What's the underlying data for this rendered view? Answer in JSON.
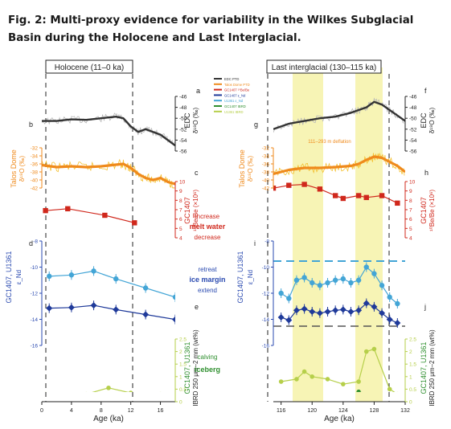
{
  "figure": {
    "caption": "Fig. 2: Multi-proxy evidence for variability in the Wilkes Subglacial Basin during the Holocene and Last Interglacial."
  },
  "panels": {
    "holocene_title": "Holocene (11–0 ka)",
    "lig_title": "Last interglacial (130–115 ka)",
    "letters": [
      "a",
      "b",
      "c",
      "d",
      "e",
      "f",
      "g",
      "h",
      "i",
      "j"
    ],
    "inflation_note": "111–293 m deflation"
  },
  "axis_labels": {
    "x": "Age (ka)",
    "edc": "EDC",
    "edc_sub": "δ¹⁸O (‰)",
    "talos": "Talos Dome",
    "talos_sub": "δ¹⁸O (‰)",
    "be": "GC1407",
    "be_sub": "¹⁰Be/Be (×10⁶)",
    "end": "ε_Nd",
    "end_core": "GC1407, U1361",
    "ibrd": "GC1407, U1361",
    "ibrd_sub": "IBRD 250 μm–2 mm (wt%)"
  },
  "annotations": {
    "melt_increase": "increase",
    "melt_label": "melt water",
    "melt_decrease": "decrease",
    "ice_retreat": "retreat",
    "ice_label": "ice margin",
    "ice_extend": "extend",
    "calving": "calving",
    "iceberg": "iceberg"
  },
  "legend": {
    "items": [
      "EDC PTD",
      "Talos Dome PTD",
      "GC1407 ¹⁰Be/Be",
      "GC1407 ε_Nd",
      "U1361 ε_Nd",
      "GC1407 IBRD",
      "U1361 IBRD"
    ]
  },
  "colors": {
    "edc": "#333333",
    "edc_raw": "#b8b8b8",
    "talos": "#ef8a1c",
    "talos_raw": "#f4c030",
    "be": "#d0281c",
    "end_u1361": "#43a5d6",
    "end_gc1407": "#1f3a9a",
    "ibrd_gc": "#2f8f2f",
    "ibrd_u": "#b6cf4a",
    "shade": "#f7f4b5",
    "red_annot": "#d0281c",
    "blue_annot": "#2a4ab0",
    "green_annot": "#2f8f2f"
  },
  "chart_data": [
    {
      "type": "line",
      "title": "Holocene (11–0 ka)",
      "xlabel": "Age (ka)",
      "xlim": [
        0,
        18
      ],
      "x_ticks": [
        0,
        4,
        8,
        12,
        16
      ],
      "series": [
        {
          "name": "EDC PTD",
          "ylim": [
            -56,
            -46
          ],
          "x": [
            0,
            2,
            4,
            6,
            8,
            10,
            11,
            12,
            13,
            14,
            15,
            16,
            17,
            18
          ],
          "y": [
            -50.5,
            -50.5,
            -50.2,
            -50.3,
            -50,
            -49.7,
            -50,
            -51.5,
            -52.5,
            -52,
            -52.5,
            -53,
            -54,
            -55
          ]
        },
        {
          "name": "Talos Dome PTD",
          "ylim": [
            -42,
            -32
          ],
          "x": [
            0,
            2,
            4,
            6,
            8,
            10,
            11,
            12,
            13,
            14,
            15,
            16,
            17,
            18
          ],
          "y": [
            -36.3,
            -36.8,
            -36.6,
            -36.8,
            -36.6,
            -36.2,
            -36,
            -37,
            -38.5,
            -39.5,
            -40,
            -39.5,
            -40.5,
            -41
          ]
        },
        {
          "name": "GC1407 ¹⁰Be/Be",
          "ylim": [
            4,
            10
          ],
          "x": [
            0.5,
            3.5,
            8.5,
            12.5
          ],
          "y": [
            6.9,
            7.1,
            6.4,
            5.6
          ]
        },
        {
          "name": "GC1407 ε_Nd",
          "ylim": [
            -16,
            -8
          ],
          "x": [
            1,
            4,
            7,
            10,
            14,
            18
          ],
          "y": [
            -10.7,
            -10.6,
            -10.3,
            -10.9,
            -11.6,
            -12.3
          ]
        },
        {
          "name": "GC1407 IBRD",
          "ylim": [
            0,
            2.5
          ],
          "x": [
            0,
            3,
            6,
            9,
            12,
            16
          ],
          "y": [
            0.05,
            0.05,
            0.05,
            0.05,
            0.05,
            0.05
          ]
        },
        {
          "name": "U1361 IBRD",
          "ylim": [
            0,
            2.5
          ],
          "x": [
            0.5,
            3,
            6,
            9,
            12,
            16
          ],
          "y": [
            0.3,
            0.25,
            0.3,
            0.55,
            0.35,
            0.3
          ]
        }
      ]
    },
    {
      "type": "line",
      "title": "Last interglacial (130–115 ka)",
      "xlabel": "Age (ka)",
      "xlim": [
        115,
        132
      ],
      "x_ticks": [
        116,
        120,
        124,
        128,
        132
      ],
      "series": [
        {
          "name": "EDC PTD",
          "ylim": [
            -56,
            -46
          ],
          "x": [
            115,
            117,
            119,
            121,
            123,
            125,
            126,
            127,
            128,
            129,
            130,
            131,
            132
          ],
          "y": [
            -52,
            -51,
            -50.5,
            -50,
            -49.7,
            -49,
            -48.5,
            -48,
            -47,
            -47.5,
            -48.5,
            -49.5,
            -50.5
          ]
        },
        {
          "name": "Talos Dome PTD",
          "ylim": [
            -42,
            -32
          ],
          "x": [
            115,
            117,
            119,
            121,
            123,
            125,
            126,
            127,
            128,
            129,
            130,
            131,
            132
          ],
          "y": [
            -38.5,
            -37.5,
            -37,
            -37,
            -36.8,
            -36.5,
            -36,
            -35,
            -34.2,
            -34.5,
            -35.5,
            -36.5,
            -38
          ]
        },
        {
          "name": "GC1407 ¹⁰Be/Be",
          "ylim": [
            4,
            10
          ],
          "x": [
            115,
            117,
            119,
            121,
            123,
            124,
            126,
            127,
            129,
            131
          ],
          "y": [
            9.3,
            9.6,
            9.7,
            9.2,
            8.5,
            8.2,
            8.5,
            8.3,
            8.5,
            7.7
          ]
        },
        {
          "name": "GC1407 ε_Nd",
          "ylim": [
            -16,
            -8
          ],
          "x": [
            116,
            117,
            118,
            119,
            120,
            121,
            122,
            123,
            124,
            125,
            126,
            127,
            128,
            129,
            130,
            131
          ],
          "y": [
            -12,
            -12.4,
            -11,
            -10.8,
            -11.2,
            -11.4,
            -11.2,
            -11,
            -10.9,
            -11.2,
            -11,
            -10,
            -10.5,
            -11.4,
            -12.3,
            -12.8
          ]
        },
        {
          "name": "GC1407 IBRD",
          "ylim": [
            0,
            2.5
          ],
          "x": [
            116,
            117,
            118,
            119,
            120,
            121,
            122,
            123,
            124,
            125,
            126,
            127,
            128,
            129,
            130,
            131
          ],
          "y": [
            0.1,
            0.2,
            0.25,
            0.3,
            0.25,
            0.2,
            0.3,
            0.2,
            0.25,
            0.3,
            0.4,
            0.3,
            0.2,
            0.25,
            0.1,
            0.05
          ]
        },
        {
          "name": "U1361 IBRD",
          "ylim": [
            0,
            2.5
          ],
          "x": [
            116,
            118,
            119,
            120,
            122,
            124,
            126,
            127,
            128,
            130,
            131
          ],
          "y": [
            0.8,
            0.9,
            1.2,
            1,
            0.9,
            0.7,
            0.8,
            2,
            2.1,
            0.5,
            0.3
          ]
        }
      ]
    }
  ]
}
